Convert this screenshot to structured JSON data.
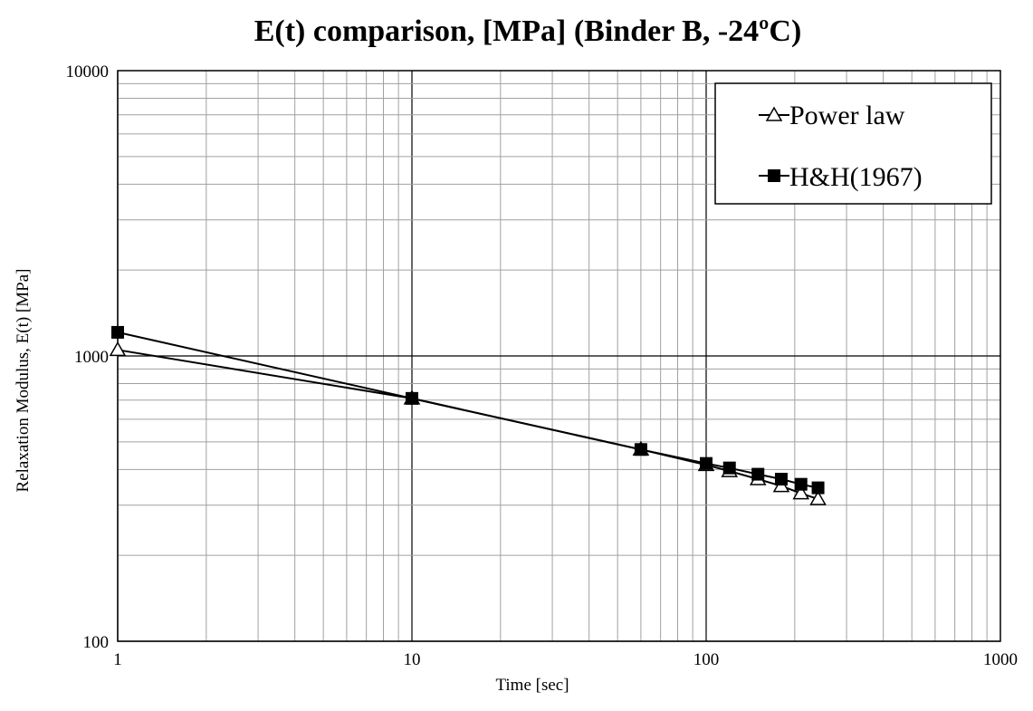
{
  "chart_data": {
    "type": "line",
    "title": "E(t) comparison, [MPa] (Binder B, -24ºC)",
    "xlabel": "Time [sec]",
    "ylabel": "Relaxation Modulus, E(t) [MPa]",
    "xscale": "log",
    "yscale": "log",
    "xlim": [
      1,
      1000
    ],
    "ylim": [
      100,
      10000
    ],
    "x_ticks": [
      1,
      10,
      100,
      1000
    ],
    "x_tick_labels": [
      "1",
      "10",
      "100",
      "1000"
    ],
    "y_ticks": [
      100,
      1000,
      10000
    ],
    "y_tick_labels": [
      "100",
      "1000",
      "10000"
    ],
    "grid": true,
    "legend_position": "top-right",
    "series": [
      {
        "name": "Power law",
        "marker": "open-triangle",
        "x": [
          1,
          10,
          60,
          100,
          120,
          150,
          180,
          210,
          240
        ],
        "y": [
          1050,
          710,
          470,
          415,
          395,
          370,
          350,
          330,
          315
        ]
      },
      {
        "name": "H&H(1967)",
        "marker": "filled-square",
        "x": [
          1,
          10,
          60,
          100,
          120,
          150,
          180,
          210,
          240
        ],
        "y": [
          1210,
          710,
          470,
          420,
          405,
          385,
          370,
          355,
          345
        ]
      }
    ]
  }
}
